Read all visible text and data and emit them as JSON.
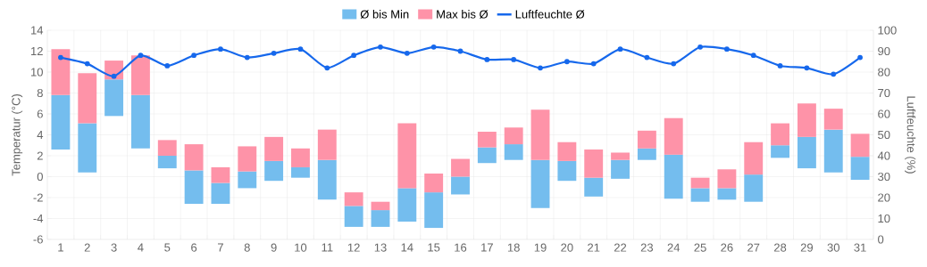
{
  "chart_data": {
    "type": "bar",
    "categories": [
      "1",
      "2",
      "3",
      "4",
      "5",
      "6",
      "7",
      "8",
      "9",
      "10",
      "11",
      "12",
      "13",
      "14",
      "15",
      "16",
      "17",
      "18",
      "19",
      "20",
      "21",
      "22",
      "23",
      "24",
      "25",
      "26",
      "27",
      "28",
      "29",
      "30",
      "31"
    ],
    "series": [
      {
        "name": "Ø bis Min",
        "color": "#74bdee",
        "base": [
          2.6,
          0.4,
          5.8,
          2.7,
          0.8,
          -2.6,
          -2.6,
          -1.1,
          -0.4,
          -0.1,
          -2.2,
          -4.8,
          -4.8,
          -4.3,
          -4.9,
          -1.7,
          1.3,
          1.6,
          -3.0,
          -0.4,
          -1.9,
          -0.2,
          1.6,
          -2.1,
          -2.4,
          -2.2,
          -2.4,
          1.8,
          0.8,
          0.4,
          -0.3
        ],
        "values": [
          5.2,
          4.7,
          3.5,
          5.1,
          1.2,
          3.2,
          2.0,
          1.6,
          1.9,
          1.0,
          3.8,
          2.0,
          1.6,
          3.2,
          3.4,
          1.7,
          1.5,
          1.5,
          4.6,
          1.9,
          1.8,
          1.8,
          1.1,
          4.2,
          1.3,
          1.1,
          2.6,
          1.2,
          3.0,
          4.1,
          2.2
        ]
      },
      {
        "name": "Max bis Ø",
        "color": "#fe93a8",
        "base": [
          7.8,
          5.1,
          9.3,
          7.8,
          2.0,
          0.6,
          -0.6,
          0.5,
          1.5,
          0.9,
          1.6,
          -2.8,
          -3.2,
          -1.1,
          -1.5,
          0.0,
          2.8,
          3.1,
          1.6,
          1.5,
          -0.1,
          1.6,
          2.7,
          2.1,
          -1.1,
          -1.1,
          0.2,
          3.0,
          3.8,
          4.5,
          1.9
        ],
        "values": [
          4.4,
          4.8,
          1.8,
          3.8,
          1.5,
          2.5,
          1.5,
          2.4,
          2.3,
          1.8,
          2.9,
          1.3,
          0.8,
          6.2,
          1.8,
          1.7,
          1.5,
          1.6,
          4.8,
          1.8,
          2.7,
          0.7,
          1.7,
          3.5,
          1.0,
          1.8,
          3.1,
          2.1,
          3.2,
          2.0,
          2.2
        ]
      },
      {
        "name": "Luftfeuchte Ø",
        "type": "line",
        "axis": "y2",
        "color": "#1668ec",
        "values": [
          87,
          84,
          78,
          88,
          83,
          88,
          91,
          87,
          89,
          91,
          82,
          88,
          92,
          89,
          92,
          90,
          86,
          86,
          82,
          85,
          84,
          91,
          87,
          84,
          92,
          91,
          88,
          83,
          82,
          79,
          87
        ]
      }
    ],
    "ylabel": "Temperatur (°C)",
    "y2label": "Luftfeuchte (%)",
    "ylim": [
      -6,
      14
    ],
    "yticks": [
      -6,
      -4,
      -2,
      0,
      2,
      4,
      6,
      8,
      10,
      12,
      14
    ],
    "y2lim": [
      0,
      100
    ],
    "y2ticks": [
      0,
      10,
      20,
      30,
      40,
      50,
      60,
      70,
      80,
      90,
      100
    ],
    "grid": true,
    "legend": "top",
    "marker": "circle",
    "line_style": "solid"
  }
}
